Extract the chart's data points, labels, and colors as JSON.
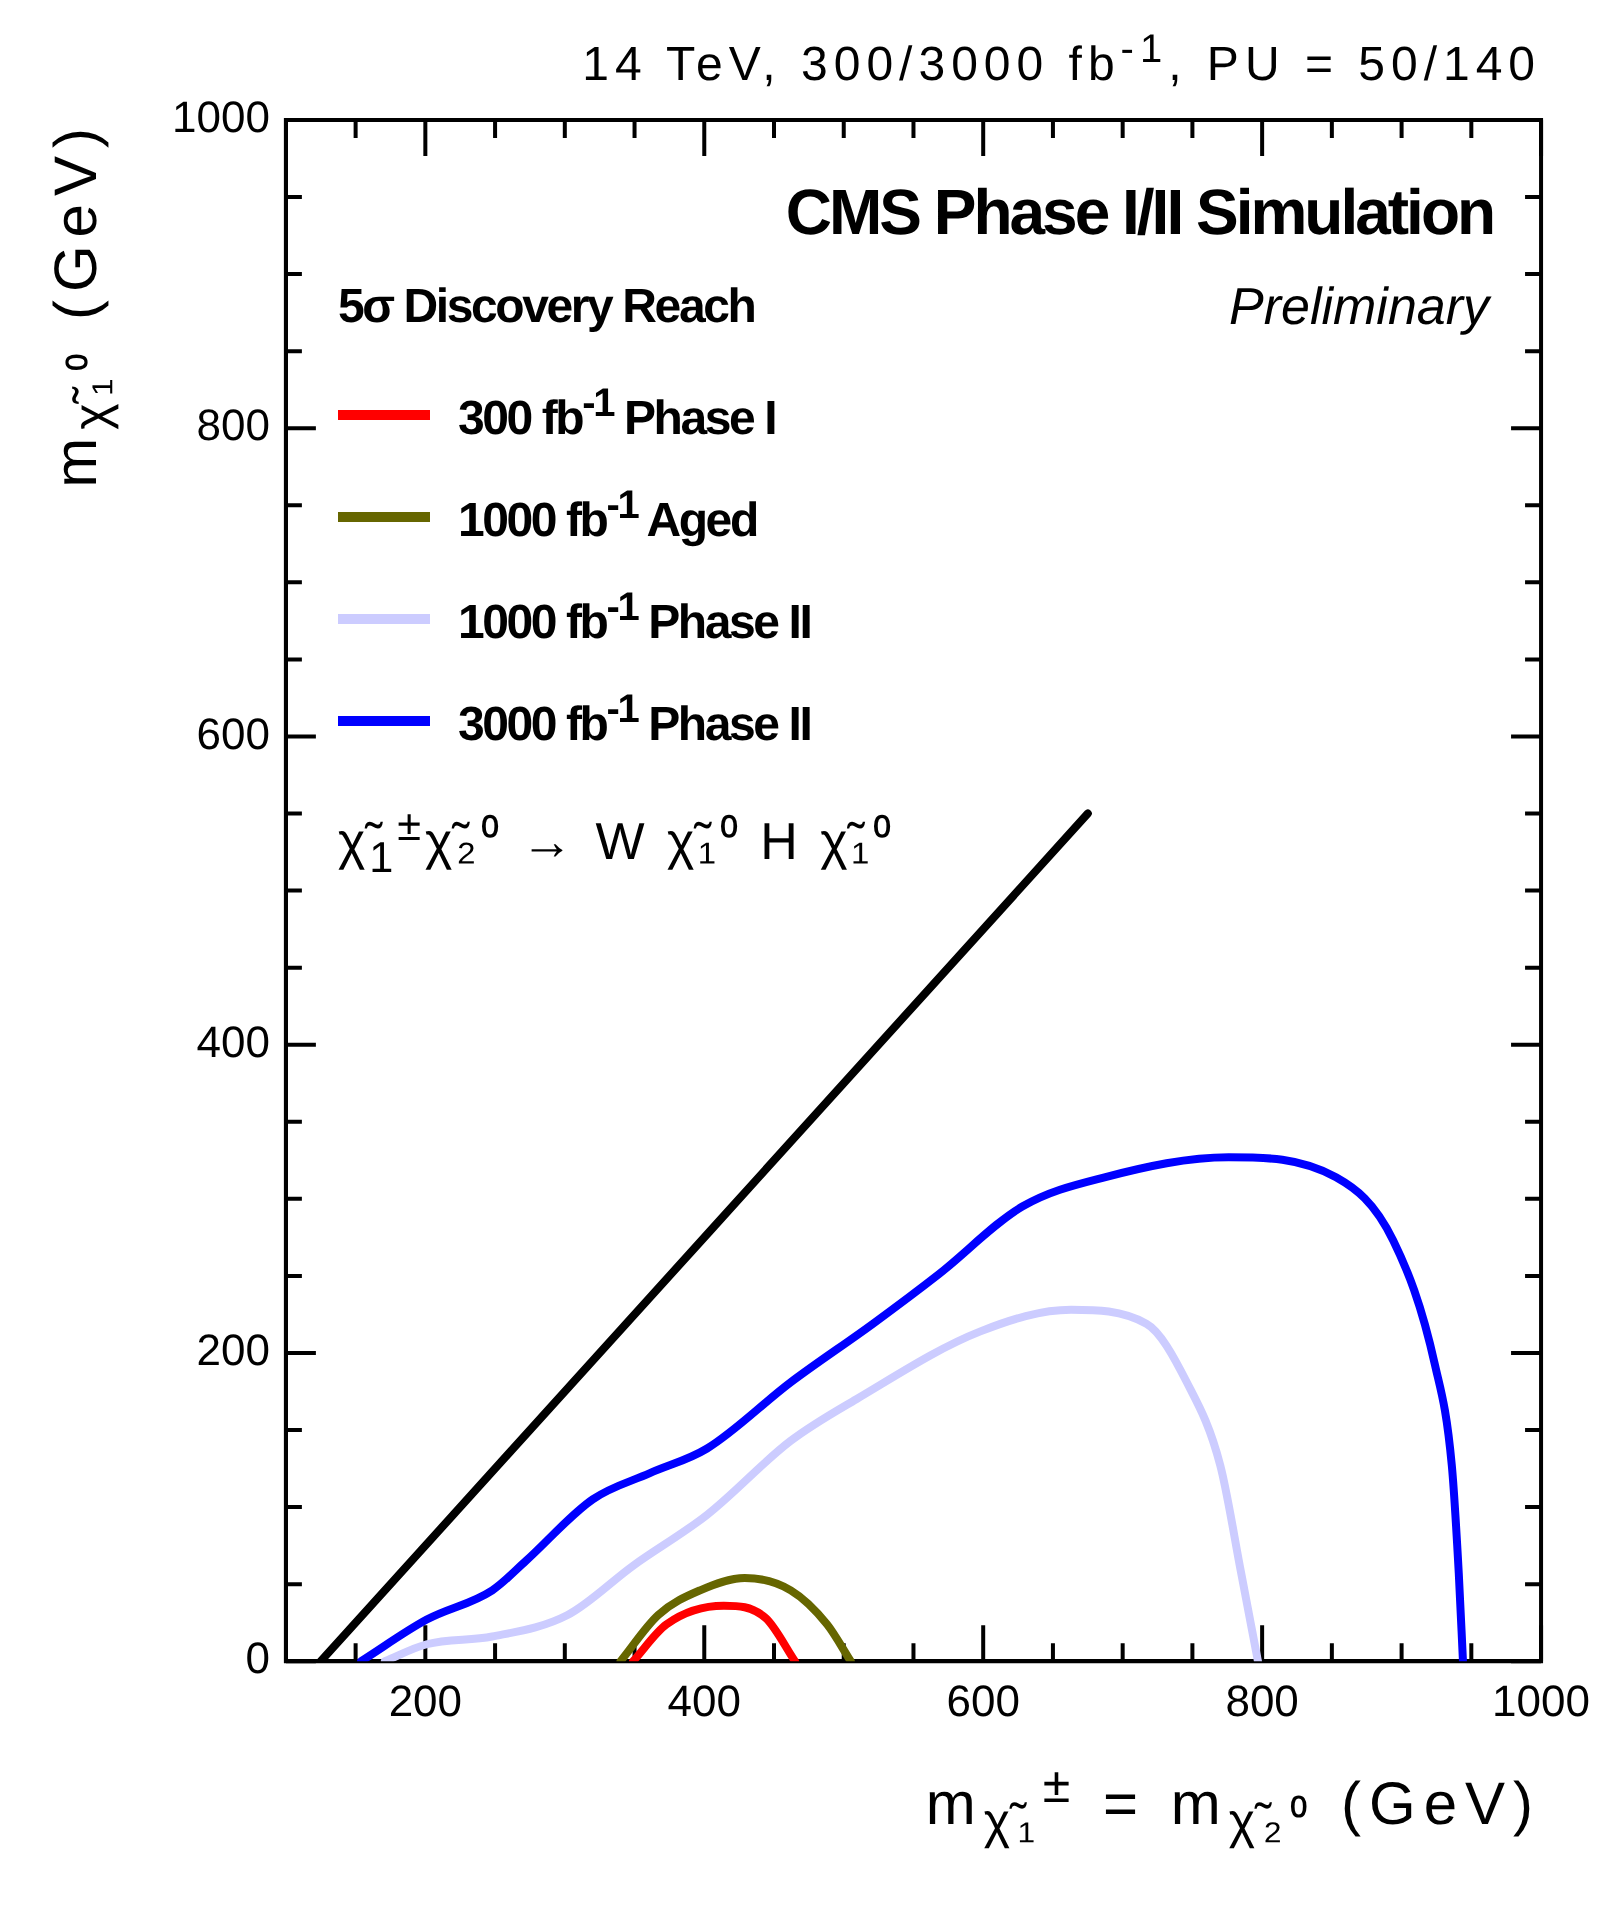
{
  "chart_data": {
    "type": "line",
    "title": "CMS Phase I/II Simulation",
    "subtitle": "Preliminary",
    "xlabel": "m$_{χ̃₁}$$^{±}$ = m$_{χ̃₂⁰}$ (GeV)",
    "ylabel": "m$_{χ̃₁⁰}$ (GeV)",
    "legend_title": "5σ Discovery Reach",
    "annotations": [
      "14 TeV, 300/3000 fb$^{-1}$, PU = 50/140",
      "χ̃$_{1}$$^{±}$χ̃₂⁰ → W χ̃₁⁰ H χ̃₁⁰"
    ],
    "series": [
      {
        "name": "300 fb$^{-1}$ Phase I",
        "color": "#ff0000",
        "x": [
          349,
          373,
          414,
          444,
          465
        ],
        "values": [
          0,
          24,
          36,
          28,
          0
        ]
      },
      {
        "name": "1000 fb$^{-1}$ Aged",
        "color": "#666600",
        "x": [
          340,
          367,
          397,
          429,
          462,
          488,
          505
        ],
        "values": [
          0,
          30,
          46,
          54,
          46,
          24,
          0
        ]
      },
      {
        "name": "1000 fb$^{-1}$ Phase II",
        "color": "#ccccff",
        "x": [
          171,
          201,
          248,
          302,
          349,
          402,
          462,
          509,
          598,
          663,
          717,
          746,
          770,
          785,
          797
        ],
        "values": [
          0,
          11,
          16,
          30,
          62,
          95,
          143,
          170,
          214,
          228,
          219,
          181,
          127,
          57,
          0
        ]
      },
      {
        "name": "3000 fb$^{-1}$ Phase II",
        "color": "#0000ff",
        "x": [
          154,
          201,
          248,
          272,
          320,
          361,
          402,
          462,
          521,
          568,
          628,
          687,
          776,
          853,
          894,
          924,
          936,
          941,
          944
        ],
        "values": [
          0,
          27,
          46,
          65,
          105,
          122,
          138,
          181,
          219,
          251,
          295,
          314,
          327,
          314,
          273,
          192,
          127,
          57,
          0
        ]
      },
      {
        "color": "#000000",
        "x": [
          125,
          675
        ],
        "values": [
          0,
          550
        ]
      }
    ],
    "xlim": [
      100,
      1000
    ],
    "xticks": [
      {
        "value": 150,
        "label": null
      },
      200,
      {
        "value": 250,
        "label": null
      },
      {
        "value": 300,
        "label": null
      },
      {
        "value": 350,
        "label": null
      },
      400,
      {
        "value": 450,
        "label": null
      },
      {
        "value": 500,
        "label": null
      },
      {
        "value": 550,
        "label": null
      },
      600,
      {
        "value": 650,
        "label": null
      },
      {
        "value": 700,
        "label": null
      },
      {
        "value": 750,
        "label": null
      },
      800,
      {
        "value": 850,
        "label": null
      },
      {
        "value": 900,
        "label": null
      },
      {
        "value": 950,
        "label": null
      },
      1000
    ],
    "ylim": [
      0,
      1000
    ],
    "yticks": [
      0,
      {
        "value": 50,
        "label": null
      },
      {
        "value": 100,
        "label": null
      },
      {
        "value": 150,
        "label": null
      },
      200,
      {
        "value": 250,
        "label": null
      },
      {
        "value": 300,
        "label": null
      },
      {
        "value": 350,
        "label": null
      },
      400,
      {
        "value": 450,
        "label": null
      },
      {
        "value": 500,
        "label": null
      },
      {
        "value": 550,
        "label": null
      },
      600,
      {
        "value": 650,
        "label": null
      },
      {
        "value": 700,
        "label": null
      },
      {
        "value": 750,
        "label": null
      },
      800,
      {
        "value": 850,
        "label": null
      },
      {
        "value": 900,
        "label": null
      },
      {
        "value": 950,
        "label": null
      },
      1000
    ],
    "grid": false,
    "legend": "top left",
    "marker": "none",
    "line_style": "solid"
  }
}
